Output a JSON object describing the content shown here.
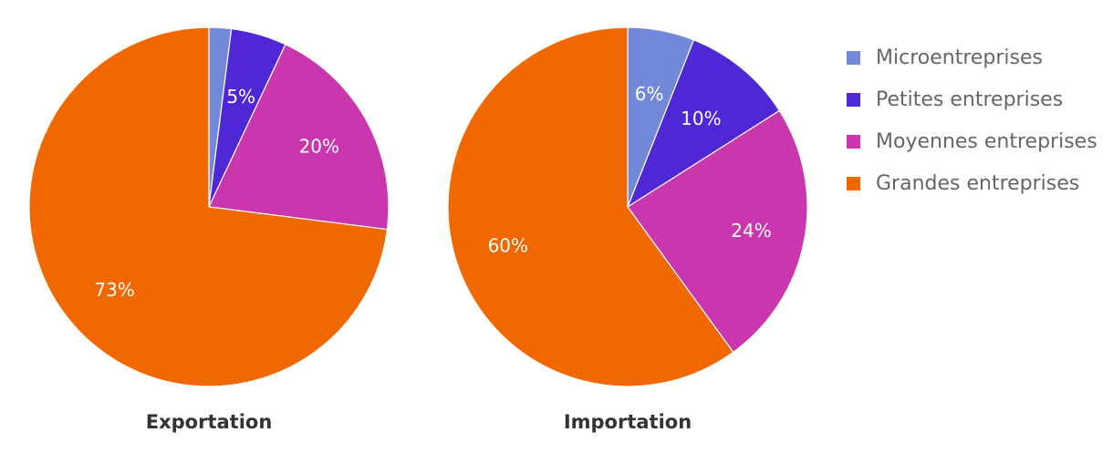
{
  "chart_data": [
    {
      "type": "pie",
      "title": "Exportation",
      "categories": [
        "Microentreprises",
        "Petites entreprises",
        "Moyennes entreprises",
        "Grandes entreprises"
      ],
      "values": [
        2,
        5,
        20,
        73
      ],
      "labels": [
        "",
        "5%",
        "20%",
        "73%"
      ],
      "colors": [
        "#7289d9",
        "#4f27d6",
        "#c936ad",
        "#f26800"
      ]
    },
    {
      "type": "pie",
      "title": "Importation",
      "categories": [
        "Microentreprises",
        "Petites entreprises",
        "Moyennes entreprises",
        "Grandes entreprises"
      ],
      "values": [
        6,
        10,
        24,
        60
      ],
      "labels": [
        "6%",
        "10%",
        "24%",
        "60%"
      ],
      "colors": [
        "#7289d9",
        "#4f27d6",
        "#c936ad",
        "#f26800"
      ]
    }
  ],
  "legend": {
    "position": "top-right",
    "items": [
      {
        "label": "Microentreprises",
        "color": "#7289d9"
      },
      {
        "label": "Petites entreprises",
        "color": "#4f27d6"
      },
      {
        "label": "Moyennes entreprises",
        "color": "#c936ad"
      },
      {
        "label": "Grandes entreprises",
        "color": "#f26800"
      }
    ]
  }
}
